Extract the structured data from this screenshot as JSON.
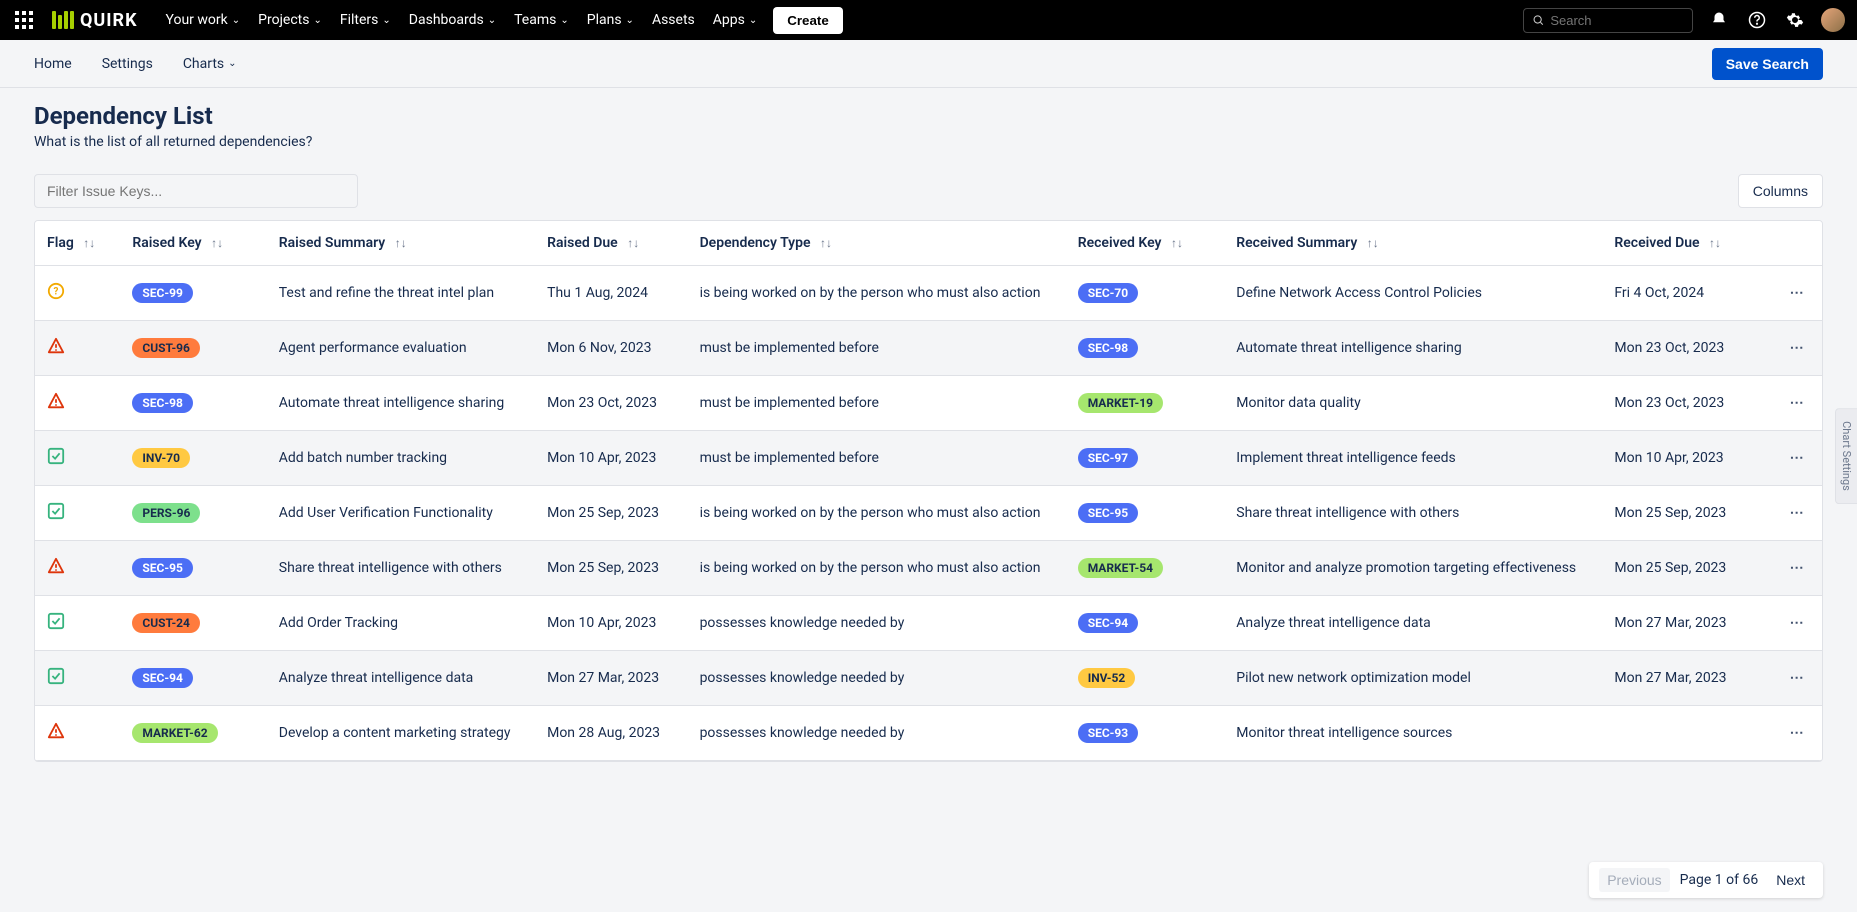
{
  "topnav": {
    "logo_text": "QUIRK",
    "menu": [
      "Your work",
      "Projects",
      "Filters",
      "Dashboards",
      "Teams",
      "Plans",
      "Assets",
      "Apps"
    ],
    "menu_has_chevron": [
      true,
      true,
      true,
      true,
      true,
      true,
      false,
      true
    ],
    "create_label": "Create",
    "search_placeholder": "Search"
  },
  "subnav": {
    "items": [
      "Home",
      "Settings",
      "Charts"
    ],
    "items_has_chevron": [
      false,
      false,
      true
    ],
    "save_label": "Save Search"
  },
  "page": {
    "title": "Dependency List",
    "subtitle": "What is the list of all returned dependencies?"
  },
  "toolbar": {
    "filter_placeholder": "Filter Issue Keys...",
    "columns_label": "Columns"
  },
  "table": {
    "columns": [
      "Flag",
      "Raised Key",
      "Raised Summary",
      "Raised Due",
      "Dependency Type",
      "Received Key",
      "Received Summary",
      "Received Due"
    ]
  },
  "badge_colors": {
    "SEC": "#4c6ef5",
    "CUST": "#ff7b3d",
    "INV": "#ffc942",
    "PERS": "#7de08c",
    "MARKET": "#a6e66e"
  },
  "badge_text_colors": {
    "SEC": "#ffffff",
    "CUST": "#172b4d",
    "INV": "#172b4d",
    "PERS": "#172b4d",
    "MARKET": "#172b4d"
  },
  "flag_styles": {
    "question": {
      "type": "circle",
      "stroke": "#f2a900",
      "glyph": "?"
    },
    "warning": {
      "type": "triangle",
      "stroke": "#de350b"
    },
    "check": {
      "type": "square",
      "stroke": "#36b37e"
    }
  },
  "rows": [
    {
      "flag": "question",
      "raised_key": "SEC-99",
      "raised_summary": "Test and refine the threat intel plan",
      "raised_due": "Thu 1 Aug, 2024",
      "dep_type": "is being worked on by the person who must also action",
      "received_key": "SEC-70",
      "received_summary": "Define Network Access Control Policies",
      "received_due": "Fri 4 Oct, 2024"
    },
    {
      "flag": "warning",
      "raised_key": "CUST-96",
      "raised_summary": "Agent performance evaluation",
      "raised_due": "Mon 6 Nov, 2023",
      "dep_type": "must be implemented before",
      "received_key": "SEC-98",
      "received_summary": "Automate threat intelligence sharing",
      "received_due": "Mon 23 Oct, 2023"
    },
    {
      "flag": "warning",
      "raised_key": "SEC-98",
      "raised_summary": "Automate threat intelligence sharing",
      "raised_due": "Mon 23 Oct, 2023",
      "dep_type": "must be implemented before",
      "received_key": "MARKET-19",
      "received_summary": "Monitor data quality",
      "received_due": "Mon 23 Oct, 2023"
    },
    {
      "flag": "check",
      "raised_key": "INV-70",
      "raised_summary": "Add batch number tracking",
      "raised_due": "Mon 10 Apr, 2023",
      "dep_type": "must be implemented before",
      "received_key": "SEC-97",
      "received_summary": "Implement threat intelligence feeds",
      "received_due": "Mon 10 Apr, 2023"
    },
    {
      "flag": "check",
      "raised_key": "PERS-96",
      "raised_summary": "Add User Verification Functionality",
      "raised_due": "Mon 25 Sep, 2023",
      "dep_type": "is being worked on by the person who must also action",
      "received_key": "SEC-95",
      "received_summary": "Share threat intelligence with others",
      "received_due": "Mon 25 Sep, 2023"
    },
    {
      "flag": "warning",
      "raised_key": "SEC-95",
      "raised_summary": "Share threat intelligence with others",
      "raised_due": "Mon 25 Sep, 2023",
      "dep_type": "is being worked on by the person who must also action",
      "received_key": "MARKET-54",
      "received_summary": "Monitor and analyze promotion targeting effectiveness",
      "received_due": "Mon 25 Sep, 2023"
    },
    {
      "flag": "check",
      "raised_key": "CUST-24",
      "raised_summary": "Add Order Tracking",
      "raised_due": "Mon 10 Apr, 2023",
      "dep_type": "possesses knowledge needed by",
      "received_key": "SEC-94",
      "received_summary": "Analyze threat intelligence data",
      "received_due": "Mon 27 Mar, 2023"
    },
    {
      "flag": "check",
      "raised_key": "SEC-94",
      "raised_summary": "Analyze threat intelligence data",
      "raised_due": "Mon 27 Mar, 2023",
      "dep_type": "possesses knowledge needed by",
      "received_key": "INV-52",
      "received_summary": "Pilot new network optimization model",
      "received_due": "Mon 27 Mar, 2023"
    },
    {
      "flag": "warning",
      "raised_key": "MARKET-62",
      "raised_summary": "Develop a content marketing strategy",
      "raised_due": "Mon 28 Aug, 2023",
      "dep_type": "possesses knowledge needed by",
      "received_key": "SEC-93",
      "received_summary": "Monitor threat intelligence sources",
      "received_due": ""
    }
  ],
  "pagination": {
    "prev_label": "Previous",
    "info": "Page 1 of 66",
    "next_label": "Next"
  },
  "side_tab_label": "Chart Settings"
}
